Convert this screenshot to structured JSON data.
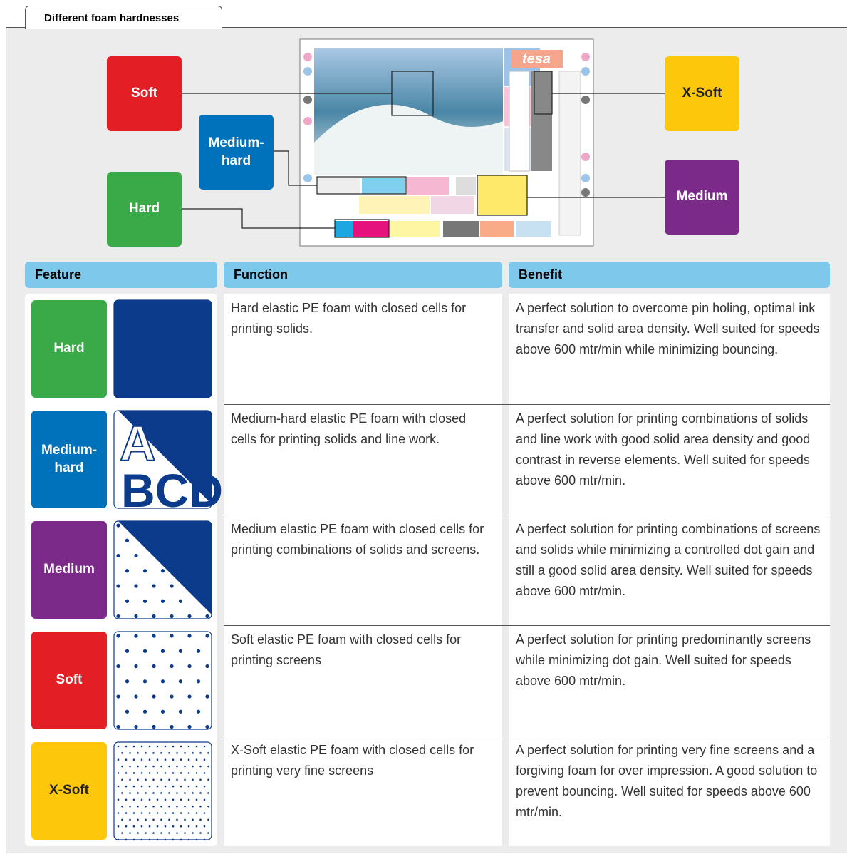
{
  "header": {
    "title": "Different foam hardnesses"
  },
  "diagram": {
    "sheet_logo": "tesa",
    "labels": [
      "Soft",
      "Medium-hard",
      "Hard",
      "X-Soft",
      "Medium"
    ]
  },
  "table": {
    "headers": [
      "Feature",
      "Function",
      "Benefit"
    ],
    "rows": [
      [
        "Hard",
        "Hard elastic PE foam with closed cells for printing solids.",
        "A perfect solution to overcome pin holing, optimal ink transfer and solid area density. Well suited for speeds above 600 mtr/min while minimizing bouncing."
      ],
      [
        "Medium-hard",
        "Medium-hard elastic PE foam with closed cells for printing solids and line work.",
        "A perfect solution for printing combinations of solids and line work with good solid area density and good contrast in reverse elements. Well suited for speeds above 600 mtr/min."
      ],
      [
        "Medium",
        "Medium elastic PE foam with closed cells for printing combinations of solids and screens.",
        "A perfect solution for printing combinations of screens and solids while minimizing a controlled dot gain and still a good solid area density. Well suited for speeds above 600 mtr/min."
      ],
      [
        "Soft",
        "Soft elastic PE foam with closed cells for printing screens",
        "A perfect solution for printing predominantly screens while minimizing dot gain. Well suited for speeds above 600 mtr/min."
      ],
      [
        "X-Soft",
        "X-Soft elastic PE foam with closed cells for printing very fine screens",
        "A perfect solution for printing very fine screens and a forgiving foam for over impression. A good solution to prevent bouncing. Well suited for speeds above 600 mtr/min."
      ]
    ],
    "swatch_text": [
      "A",
      "BCD"
    ]
  }
}
